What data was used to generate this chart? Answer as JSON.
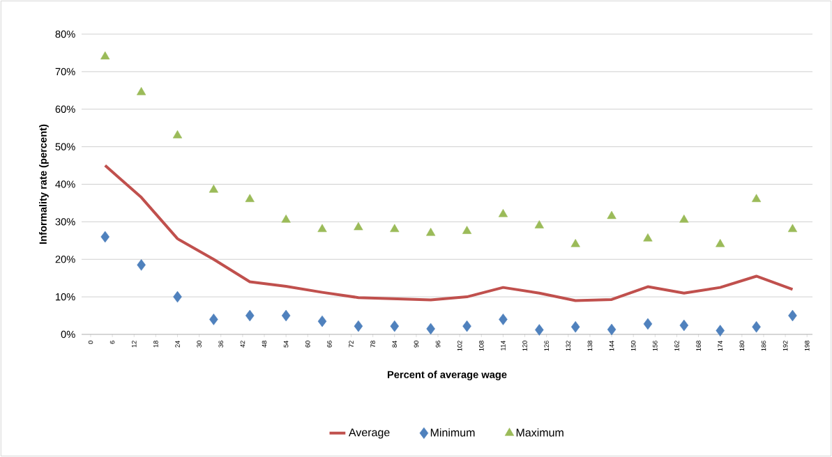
{
  "chart_data": {
    "type": "scatter",
    "xlabel": "Percent of average wage",
    "ylabel": "Informality rate (percent)",
    "x": [
      4,
      14,
      24,
      34,
      44,
      54,
      64,
      74,
      84,
      94,
      104,
      114,
      124,
      134,
      144,
      154,
      164,
      174,
      184,
      194
    ],
    "series": [
      {
        "name": "Average",
        "type": "line",
        "color": "#c0504d",
        "marker": "none",
        "values": [
          45,
          36.5,
          25.5,
          20,
          14,
          12.8,
          11.2,
          9.8,
          9.5,
          9.2,
          10,
          12.5,
          11,
          9,
          9.3,
          12.7,
          11,
          12.5,
          15.5,
          12
        ]
      },
      {
        "name": "Minimum",
        "type": "scatter",
        "color": "#4f81bd",
        "marker": "diamond",
        "values": [
          26,
          18.5,
          10,
          4,
          5,
          5,
          3.5,
          2.2,
          2.2,
          1.5,
          2.2,
          4,
          1.2,
          2,
          1.3,
          2.8,
          2.4,
          1,
          2,
          5
        ]
      },
      {
        "name": "Maximum",
        "type": "scatter",
        "color": "#9bbb59",
        "marker": "triangle",
        "values": [
          74,
          64.5,
          53,
          38.5,
          36,
          30.5,
          28,
          28.5,
          28,
          27,
          27.5,
          32,
          29,
          24,
          31.5,
          25.5,
          30.5,
          24,
          36,
          28
        ]
      }
    ],
    "xlim": [
      -2.5,
      199.5
    ],
    "xticks": [
      0,
      6,
      12,
      18,
      24,
      30,
      36,
      42,
      48,
      54,
      60,
      66,
      72,
      78,
      84,
      90,
      96,
      102,
      108,
      114,
      120,
      126,
      132,
      138,
      144,
      150,
      156,
      162,
      168,
      174,
      180,
      186,
      192,
      198
    ],
    "ylim": [
      0,
      80
    ],
    "yticks": [
      {
        "value": 0,
        "label": "0%"
      },
      {
        "value": 10,
        "label": "10%"
      },
      {
        "value": 20,
        "label": "20%"
      },
      {
        "value": 30,
        "label": "30%"
      },
      {
        "value": 40,
        "label": "40%"
      },
      {
        "value": 50,
        "label": "50%"
      },
      {
        "value": 60,
        "label": "60%"
      },
      {
        "value": 70,
        "label": "70%"
      },
      {
        "value": 80,
        "label": "80%"
      }
    ],
    "grid": "y",
    "legend": "bottom"
  }
}
